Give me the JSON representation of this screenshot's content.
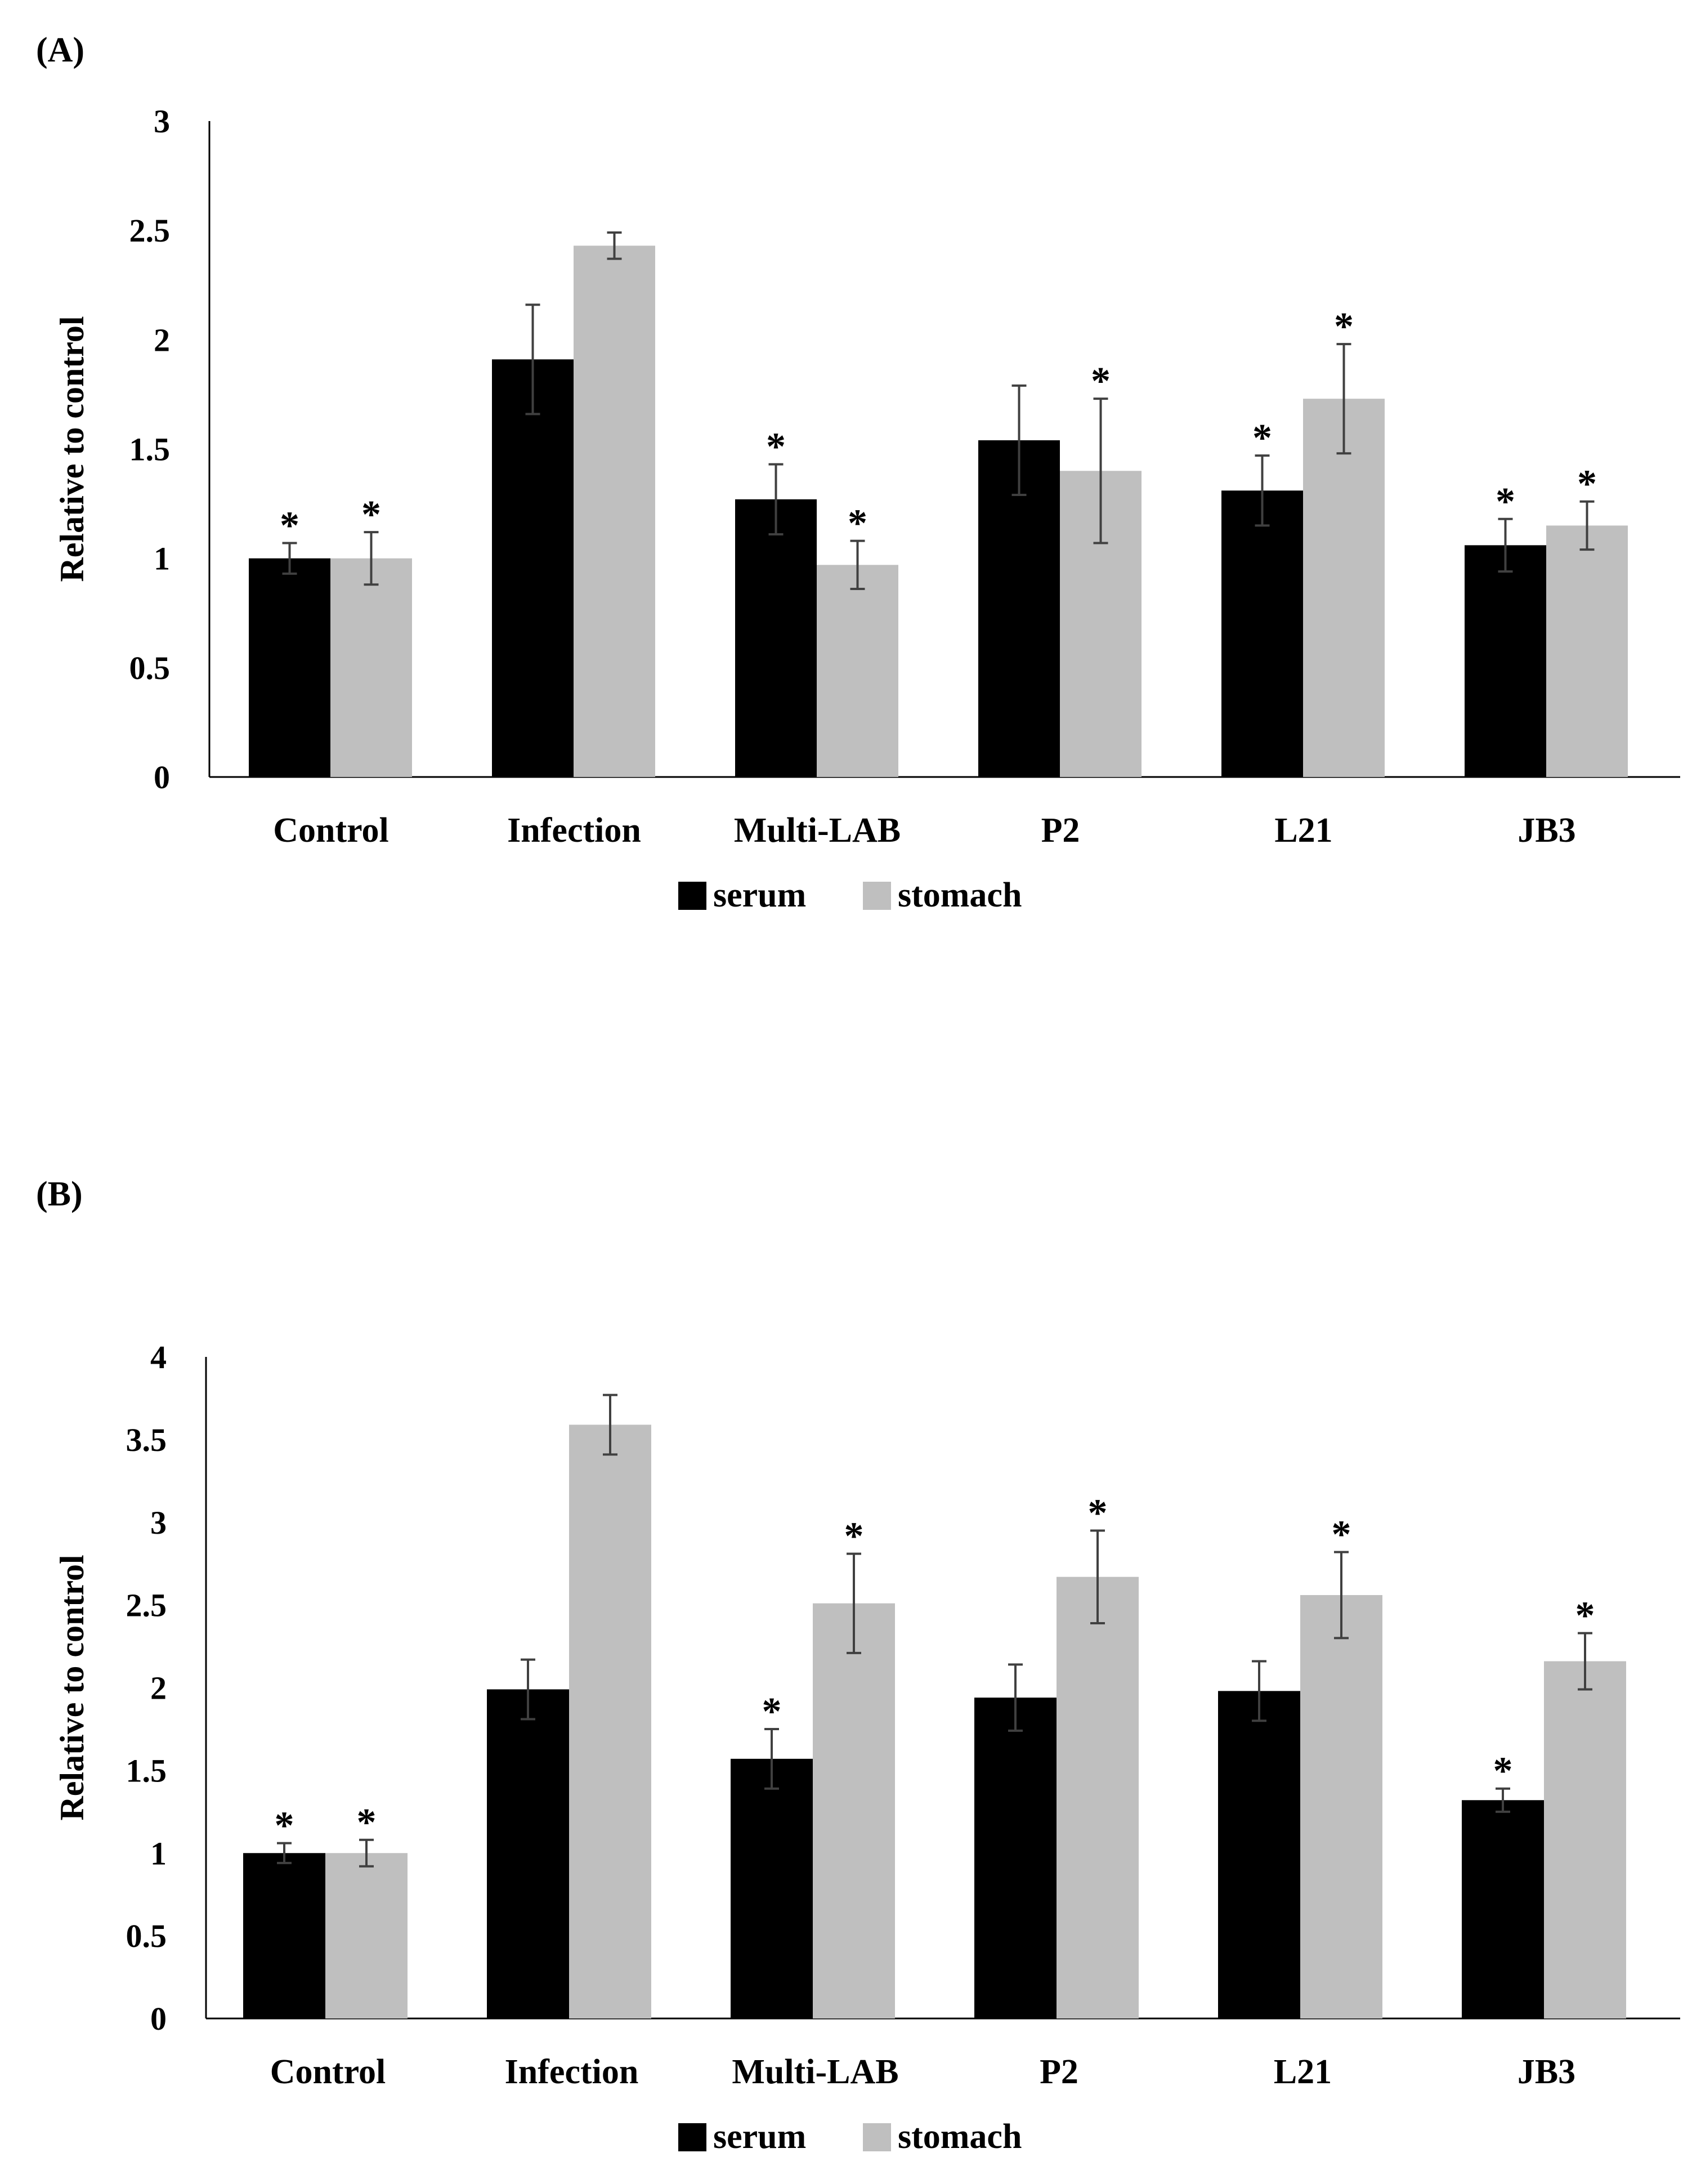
{
  "panels": {
    "a_label": "(A)",
    "b_label": "(B)"
  },
  "colors": {
    "serum": "#000000",
    "stomach": "#bfbfbf",
    "axis": "#000000",
    "error": "#404040"
  },
  "chart_data": [
    {
      "type": "bar",
      "panel": "(A)",
      "title": "",
      "xlabel": "",
      "ylabel": "Relative to control",
      "ylim": [
        0,
        3
      ],
      "yticks": [
        {
          "value": 0,
          "label": "0"
        },
        {
          "value": 0.5,
          "label": "0.5"
        },
        {
          "value": 1,
          "label": "1"
        },
        {
          "value": 1.5,
          "label": "1.5"
        },
        {
          "value": 2,
          "label": "2"
        },
        {
          "value": 2.5,
          "label": "2.5"
        },
        {
          "value": 3,
          "label": "3"
        }
      ],
      "grid": false,
      "legend_position": "bottom-center",
      "categories": [
        "Control",
        "Infection",
        "Multi-LAB",
        "P2",
        "L21",
        "JB3"
      ],
      "significance_marker": "*",
      "series": [
        {
          "name": "serum",
          "values": [
            1.0,
            1.91,
            1.27,
            1.54,
            1.31,
            1.06
          ],
          "errors": [
            0.07,
            0.25,
            0.16,
            0.25,
            0.16,
            0.12
          ],
          "significant": [
            true,
            false,
            true,
            false,
            true,
            true
          ]
        },
        {
          "name": "stomach",
          "values": [
            1.0,
            2.43,
            0.97,
            1.4,
            1.73,
            1.15
          ],
          "errors": [
            0.12,
            0.06,
            0.11,
            0.33,
            0.25,
            0.11
          ],
          "significant": [
            true,
            false,
            true,
            true,
            true,
            true
          ]
        }
      ]
    },
    {
      "type": "bar",
      "panel": "(B)",
      "title": "",
      "xlabel": "",
      "ylabel": "Relative to control",
      "ylim": [
        0,
        4
      ],
      "yticks": [
        {
          "value": 0,
          "label": "0"
        },
        {
          "value": 0.5,
          "label": "0.5"
        },
        {
          "value": 1,
          "label": "1"
        },
        {
          "value": 1.5,
          "label": "1.5"
        },
        {
          "value": 2,
          "label": "2"
        },
        {
          "value": 2.5,
          "label": "2.5"
        },
        {
          "value": 3,
          "label": "3"
        },
        {
          "value": 3.5,
          "label": "3.5"
        },
        {
          "value": 4,
          "label": "4"
        }
      ],
      "grid": false,
      "legend_position": "bottom-center",
      "categories": [
        "Control",
        "Infection",
        "Multi-LAB",
        "P2",
        "L21",
        "JB3"
      ],
      "significance_marker": "*",
      "series": [
        {
          "name": "serum",
          "values": [
            1.0,
            1.99,
            1.57,
            1.94,
            1.98,
            1.32
          ],
          "errors": [
            0.06,
            0.18,
            0.18,
            0.2,
            0.18,
            0.07
          ],
          "significant": [
            true,
            false,
            true,
            false,
            false,
            true
          ]
        },
        {
          "name": "stomach",
          "values": [
            1.0,
            3.59,
            2.51,
            2.67,
            2.56,
            2.16
          ],
          "errors": [
            0.08,
            0.18,
            0.3,
            0.28,
            0.26,
            0.17
          ],
          "significant": [
            true,
            false,
            true,
            true,
            true,
            true
          ]
        }
      ]
    }
  ]
}
